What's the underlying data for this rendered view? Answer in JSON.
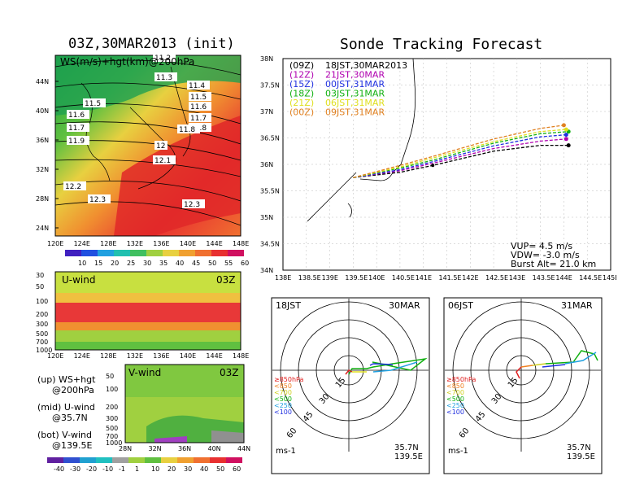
{
  "left_title": "03Z,30MAR2013 (init)",
  "right_title": "Sonde Tracking Forecast",
  "ws_panel": {
    "label": "WS(m/s)+hgt(km)@200hPa",
    "x_ticks": [
      "120E",
      "124E",
      "128E",
      "132E",
      "136E",
      "140E",
      "144E",
      "148E"
    ],
    "y_ticks": [
      "44N",
      "40N",
      "36N",
      "32N",
      "28N",
      "24N"
    ],
    "contour_labels": [
      "11.2",
      "11.3",
      "11.4",
      "11.5",
      "11.5",
      "11.6",
      "11.6",
      "11.7",
      "11.7",
      "11.8",
      "11.8",
      "11.9",
      "12",
      "12.1",
      "12.2",
      "12.3",
      "12.3"
    ],
    "colorbar": [
      "10",
      "15",
      "20",
      "25",
      "30",
      "35",
      "40",
      "45",
      "50",
      "55",
      "60"
    ]
  },
  "uwind_panel": {
    "label": "U-wind",
    "time": "03Z",
    "y_ticks": [
      "30",
      "50",
      "100",
      "200",
      "300",
      "500",
      "700",
      "1000"
    ],
    "x_ticks": [
      "120E",
      "124E",
      "128E",
      "132E",
      "136E",
      "140E",
      "144E",
      "148E"
    ]
  },
  "vwind_panel": {
    "label": "V-wind",
    "time": "03Z",
    "y_ticks": [
      "50",
      "100",
      "200",
      "300",
      "500",
      "700",
      "1000"
    ],
    "x_ticks": [
      "28N",
      "32N",
      "36N",
      "40N",
      "44N"
    ]
  },
  "legend_notes": [
    {
      "a": "(up) WS+hgt",
      "b": "@200hPa"
    },
    {
      "a": "(mid) U-wind",
      "b": "@35.7N"
    },
    {
      "a": "(bot) V-wind",
      "b": "@139.5E"
    }
  ],
  "bottom_colorbar": [
    "-40",
    "-30",
    "-20",
    "-10",
    "-1",
    "1",
    "10",
    "20",
    "30",
    "40",
    "50",
    "60"
  ],
  "track_panel": {
    "y_ticks": [
      "38N",
      "37.5N",
      "37N",
      "36.5N",
      "36N",
      "35.5N",
      "35N",
      "34.5N",
      "34N"
    ],
    "x_ticks": [
      "138E",
      "138.5E",
      "139E",
      "139.5E",
      "140E",
      "140.5E",
      "141E",
      "141.5E",
      "142E",
      "142.5E",
      "143E",
      "143.5E",
      "144E",
      "144.5E",
      "145E"
    ],
    "legend": [
      {
        "utc": "(09Z)",
        "text": "18JST,30MAR2013",
        "color": "#000000"
      },
      {
        "utc": "(12Z)",
        "text": "21JST,30MAR",
        "color": "#b000b0"
      },
      {
        "utc": "(15Z)",
        "text": "00JST,31MAR",
        "color": "#2030e0"
      },
      {
        "utc": "(18Z)",
        "text": "03JST,31MAR",
        "color": "#10b010"
      },
      {
        "utc": "(21Z)",
        "text": "06JST,31MAR",
        "color": "#e0e020"
      },
      {
        "utc": "(00Z)",
        "text": "09JST,31MAR",
        "color": "#e08020"
      }
    ],
    "stats": [
      "VUP= 4.5 m/s",
      "VDW= -3.0 m/s",
      "Burst Alt= 21.0 km"
    ]
  },
  "polar_left": {
    "time": "18JST",
    "date": "30MAR",
    "rings": [
      "15",
      "30",
      "45",
      "60"
    ]
  },
  "polar_right": {
    "time": "06JST",
    "date": "31MAR",
    "rings": [
      "15",
      "30",
      "45",
      "60"
    ]
  },
  "polar_legend": [
    {
      "label": "≥850hPa",
      "color": "#e02020"
    },
    {
      "label": "<850",
      "color": "#f08020"
    },
    {
      "label": "<700",
      "color": "#d0d020"
    },
    {
      "label": "<500",
      "color": "#10b010"
    },
    {
      "label": "<250",
      "color": "#20a0e0"
    },
    {
      "label": "<100",
      "color": "#2030e0"
    }
  ],
  "polar_units": "ms-1",
  "polar_loc": {
    "lat": "35.7N",
    "lon": "139.5E"
  },
  "chart_data": {
    "type": "line",
    "x_label": "",
    "y_label": "",
    "xlim": [
      138,
      145
    ],
    "ylim": [
      34,
      38
    ],
    "launch": [
      139.5,
      35.75
    ],
    "series": [
      {
        "name": "(09Z) 18JST,30MAR2013",
        "color": "#000000",
        "x": [
          139.5,
          140.5,
          141.2,
          142.5,
          143.5,
          144.1
        ],
        "y": [
          35.75,
          35.85,
          35.98,
          36.25,
          36.36,
          36.36
        ]
      },
      {
        "name": "(12Z) 21JST,30MAR",
        "color": "#b000b0",
        "x": [
          139.5,
          140.5,
          141.2,
          142.5,
          143.5,
          144.05
        ],
        "y": [
          35.75,
          35.88,
          36.02,
          36.3,
          36.44,
          36.48
        ]
      },
      {
        "name": "(15Z) 00JST,31MAR",
        "color": "#2030e0",
        "x": [
          139.5,
          140.5,
          141.2,
          142.5,
          143.5,
          144.05
        ],
        "y": [
          35.75,
          35.9,
          36.05,
          36.35,
          36.52,
          36.56
        ]
      },
      {
        "name": "(18Z) 03JST,31MAR",
        "color": "#10b010",
        "x": [
          139.5,
          140.5,
          141.2,
          142.5,
          143.5,
          144.1
        ],
        "y": [
          35.75,
          35.93,
          36.08,
          36.4,
          36.58,
          36.62
        ]
      },
      {
        "name": "(21Z) 06JST,31MAR",
        "color": "#e0e020",
        "x": [
          139.5,
          140.5,
          141.2,
          142.5,
          143.5,
          144.05
        ],
        "y": [
          35.75,
          35.95,
          36.12,
          36.43,
          36.62,
          36.66
        ]
      },
      {
        "name": "(00Z) 09JST,31MAR",
        "color": "#e08020",
        "x": [
          139.5,
          140.5,
          141.2,
          142.5,
          143.5,
          144.0
        ],
        "y": [
          35.75,
          35.98,
          36.15,
          36.48,
          36.68,
          36.74
        ]
      }
    ]
  }
}
